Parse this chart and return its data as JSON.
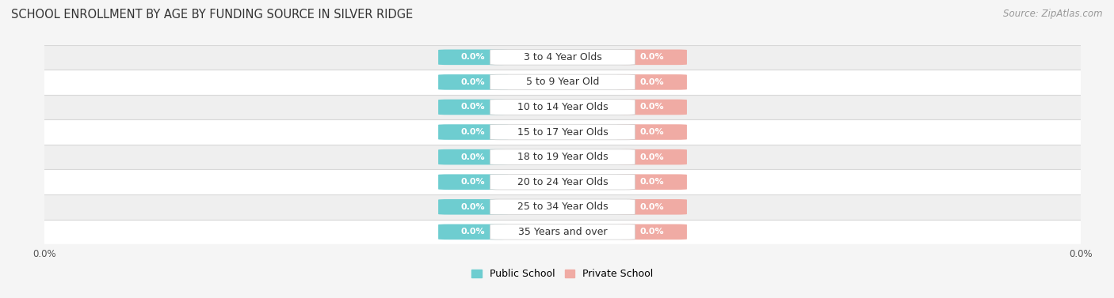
{
  "title": "SCHOOL ENROLLMENT BY AGE BY FUNDING SOURCE IN SILVER RIDGE",
  "source": "Source: ZipAtlas.com",
  "categories": [
    "3 to 4 Year Olds",
    "5 to 9 Year Old",
    "10 to 14 Year Olds",
    "15 to 17 Year Olds",
    "18 to 19 Year Olds",
    "20 to 24 Year Olds",
    "25 to 34 Year Olds",
    "35 Years and over"
  ],
  "public_values": [
    0.0,
    0.0,
    0.0,
    0.0,
    0.0,
    0.0,
    0.0,
    0.0
  ],
  "private_values": [
    0.0,
    0.0,
    0.0,
    0.0,
    0.0,
    0.0,
    0.0,
    0.0
  ],
  "public_color": "#6ecdd0",
  "private_color": "#f0aba4",
  "label_text": "0.0%",
  "row_bg_even": "#efefef",
  "row_bg_odd": "#ffffff",
  "xlim_label_left": "0.0%",
  "xlim_label_right": "0.0%",
  "legend_public": "Public School",
  "legend_private": "Private School",
  "title_fontsize": 10.5,
  "source_fontsize": 8.5,
  "bar_label_fontsize": 8,
  "category_fontsize": 9,
  "axis_label_fontsize": 8.5,
  "fig_bg": "#f5f5f5",
  "row_separator_color": "#d8d8d8"
}
